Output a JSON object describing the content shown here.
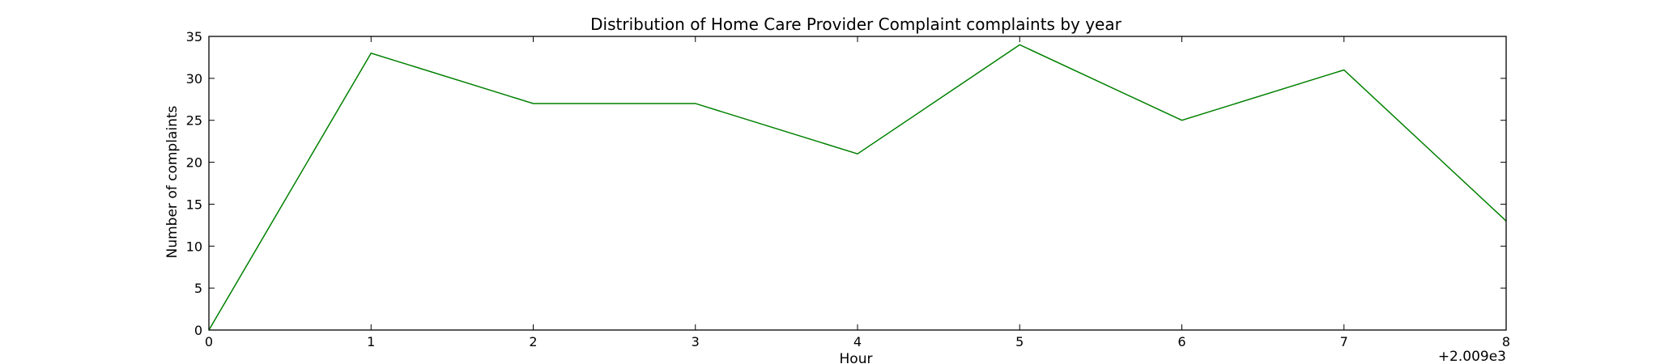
{
  "chart_data": {
    "type": "line",
    "title": "Distribution of  Home Care Provider Complaint complaints by year",
    "xlabel": "Hour",
    "ylabel": "Number of complaints",
    "x_offset_label": "+2.009e3",
    "xlim": [
      0,
      8
    ],
    "ylim": [
      0,
      35
    ],
    "x_ticks": [
      0,
      1,
      2,
      3,
      4,
      5,
      6,
      7,
      8
    ],
    "y_ticks": [
      0,
      5,
      10,
      15,
      20,
      25,
      30,
      35
    ],
    "grid": false,
    "legend": "none",
    "series": [
      {
        "color": "#008000",
        "x": [
          0,
          1,
          2,
          3,
          4,
          5,
          6,
          7,
          8
        ],
        "values": [
          0,
          33,
          27,
          27,
          21,
          34,
          25,
          31,
          13
        ]
      }
    ]
  }
}
